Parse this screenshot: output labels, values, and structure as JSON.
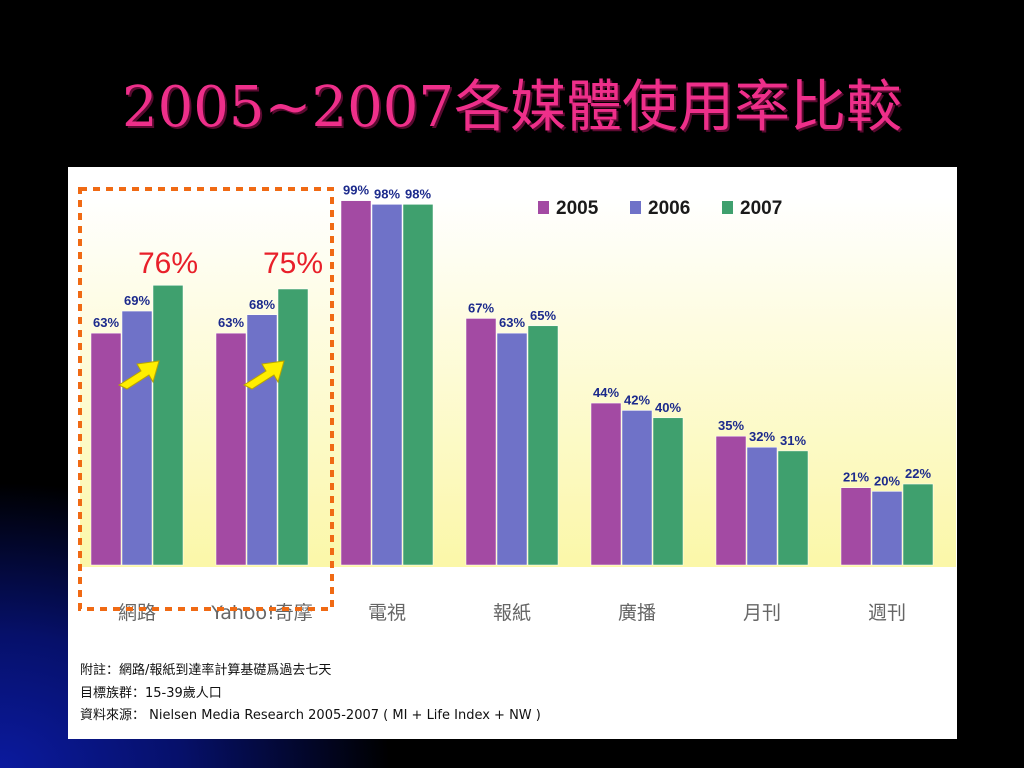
{
  "slide": {
    "title": "2005~2007各媒體使用率比較"
  },
  "chart_data": {
    "type": "bar",
    "title": "",
    "xlabel": "",
    "ylabel": "",
    "ylim": [
      0,
      100
    ],
    "grid": false,
    "legend_position": "top-right",
    "categories": [
      "網路",
      "Yahoo!奇摩",
      "電視",
      "報紙",
      "廣播",
      "月刊",
      "週刊"
    ],
    "series": [
      {
        "name": "2005",
        "color": "#a34aa3",
        "values": [
          63,
          63,
          99,
          67,
          44,
          35,
          21
        ],
        "labels": [
          "63%",
          "63%",
          "99%",
          "67%",
          "44%",
          "35%",
          "21%"
        ]
      },
      {
        "name": "2006",
        "color": "#6f72c8",
        "values": [
          69,
          68,
          98,
          63,
          42,
          32,
          20
        ],
        "labels": [
          "69%",
          "68%",
          "98%",
          "63%",
          "42%",
          "32%",
          "20%"
        ]
      },
      {
        "name": "2007",
        "color": "#3fa06e",
        "values": [
          76,
          75,
          98,
          65,
          40,
          31,
          22
        ],
        "labels": [
          "",
          "",
          "98%",
          "65%",
          "40%",
          "31%",
          "22%"
        ]
      }
    ],
    "highlight": {
      "categories": [
        "網路",
        "Yahoo!奇摩"
      ],
      "labels": [
        "76%",
        "75%"
      ],
      "box_color": "#f06a14",
      "label_color": "#e8202a",
      "arrow_color": "#ffee00"
    }
  },
  "notes": {
    "line1": "附註：網路/報紙到達率計算基礎爲過去七天",
    "line2": "目標族群：15-39歲人口",
    "line3": "資料來源： Nielsen Media Research 2005-2007 ( MI + Life Index + NW )"
  }
}
